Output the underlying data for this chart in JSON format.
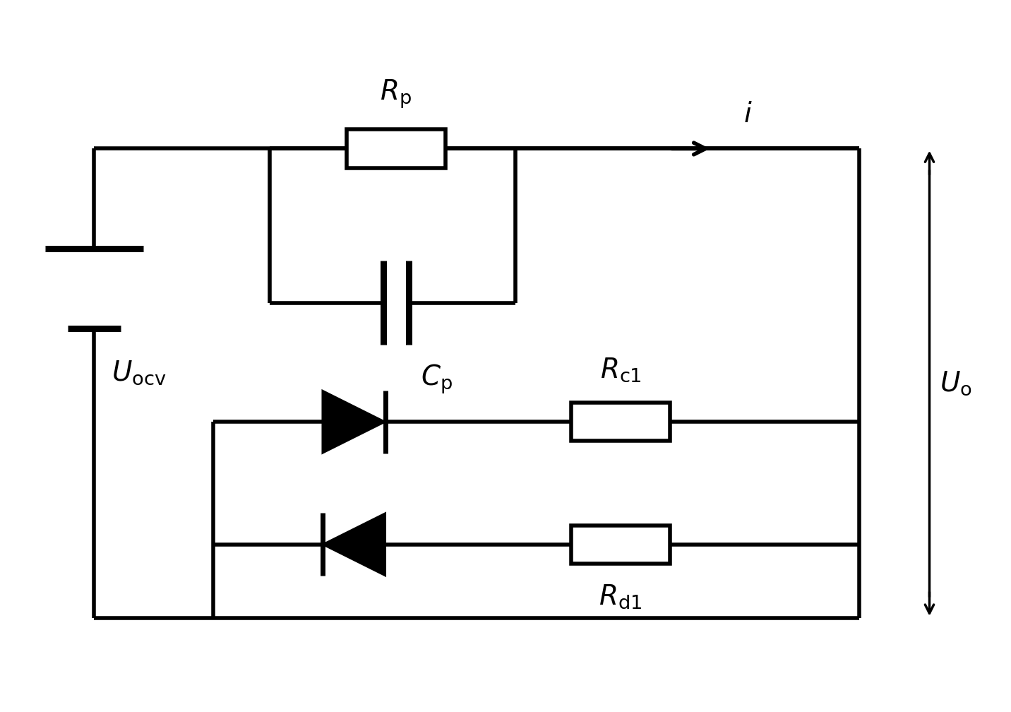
{
  "bg_color": "#ffffff",
  "line_color": "#000000",
  "lw": 4.0,
  "fig_width": 14.32,
  "fig_height": 10.08,
  "dpi": 100
}
